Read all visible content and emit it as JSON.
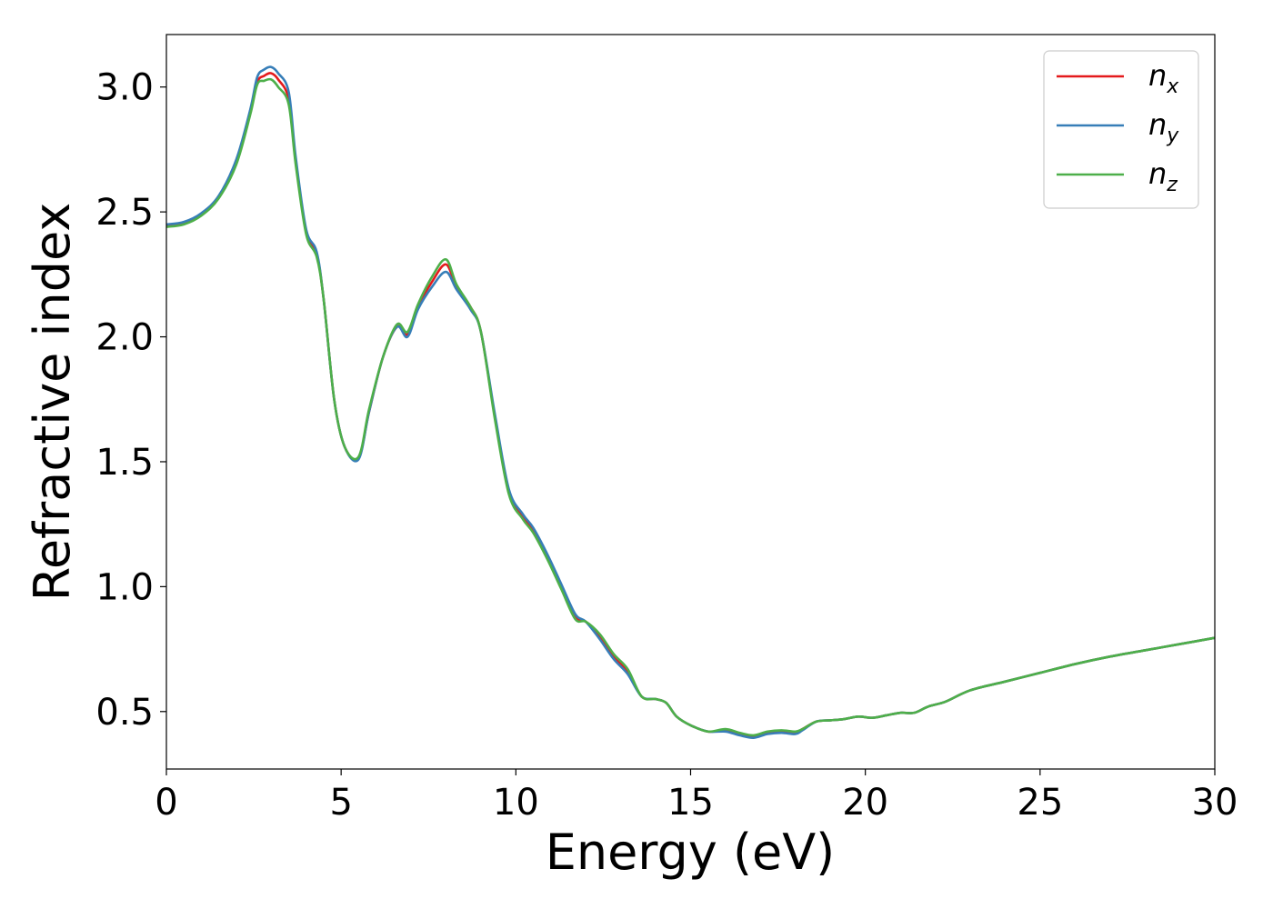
{
  "chart_data": {
    "type": "line",
    "xlabel": "Energy (eV)",
    "ylabel": "Refractive index",
    "xlim": [
      0,
      30
    ],
    "ylim": [
      0.27,
      3.21
    ],
    "xticks": [
      0,
      5,
      10,
      15,
      20,
      25,
      30
    ],
    "xtick_labels": [
      "0",
      "5",
      "10",
      "15",
      "20",
      "25",
      "30"
    ],
    "yticks": [
      0.5,
      1.0,
      1.5,
      2.0,
      2.5,
      3.0
    ],
    "ytick_labels": [
      "0.5",
      "1.0",
      "1.5",
      "2.0",
      "2.5",
      "3.0"
    ],
    "grid": false,
    "legend_position": "top-right",
    "x": [
      0,
      0.5,
      1.0,
      1.5,
      2.0,
      2.4,
      2.6,
      2.8,
      3.0,
      3.2,
      3.5,
      3.7,
      4.0,
      4.3,
      4.5,
      4.8,
      5.1,
      5.5,
      5.8,
      6.2,
      6.6,
      6.9,
      7.2,
      7.6,
      8.0,
      8.3,
      8.7,
      9.0,
      9.4,
      9.8,
      10.2,
      10.5,
      10.9,
      11.3,
      11.7,
      12.0,
      12.4,
      12.8,
      13.2,
      13.6,
      14.0,
      14.3,
      14.6,
      15.0,
      15.5,
      16.0,
      16.4,
      16.8,
      17.2,
      17.6,
      18.0,
      18.2,
      18.6,
      19.0,
      19.4,
      19.8,
      20.2,
      20.6,
      21.0,
      21.4,
      21.8,
      22.3,
      23.0,
      24.0,
      25.0,
      26.0,
      27.0,
      28.0,
      29.0,
      30.0
    ],
    "series": [
      {
        "name": "n_x",
        "label_base": "n",
        "label_sub": "x",
        "color": "#e41a1c",
        "values": [
          2.445,
          2.455,
          2.49,
          2.56,
          2.7,
          2.9,
          3.02,
          3.045,
          3.055,
          3.03,
          2.95,
          2.7,
          2.42,
          2.33,
          2.15,
          1.75,
          1.56,
          1.515,
          1.7,
          1.92,
          2.04,
          2.01,
          2.12,
          2.22,
          2.29,
          2.2,
          2.12,
          2.02,
          1.68,
          1.38,
          1.28,
          1.225,
          1.12,
          1.0,
          0.88,
          0.86,
          0.8,
          0.72,
          0.66,
          0.56,
          0.55,
          0.535,
          0.48,
          0.445,
          0.42,
          0.425,
          0.41,
          0.4,
          0.415,
          0.42,
          0.415,
          0.43,
          0.46,
          0.465,
          0.47,
          0.48,
          0.475,
          0.485,
          0.495,
          0.495,
          0.52,
          0.54,
          0.585,
          0.62,
          0.655,
          0.69,
          0.72,
          0.745,
          0.77,
          0.795
        ]
      },
      {
        "name": "n_y",
        "label_base": "n",
        "label_sub": "y",
        "color": "#377eb8",
        "values": [
          2.45,
          2.46,
          2.495,
          2.565,
          2.71,
          2.91,
          3.04,
          3.07,
          3.08,
          3.055,
          2.98,
          2.72,
          2.43,
          2.34,
          2.15,
          1.75,
          1.56,
          1.51,
          1.7,
          1.92,
          2.04,
          2.0,
          2.11,
          2.2,
          2.26,
          2.19,
          2.11,
          2.02,
          1.69,
          1.39,
          1.29,
          1.235,
          1.13,
          1.01,
          0.89,
          0.86,
          0.79,
          0.71,
          0.65,
          0.56,
          0.55,
          0.535,
          0.48,
          0.445,
          0.42,
          0.42,
          0.405,
          0.395,
          0.41,
          0.415,
          0.41,
          0.425,
          0.46,
          0.465,
          0.47,
          0.48,
          0.475,
          0.485,
          0.495,
          0.495,
          0.52,
          0.54,
          0.585,
          0.62,
          0.655,
          0.69,
          0.72,
          0.745,
          0.77,
          0.795
        ]
      },
      {
        "name": "n_z",
        "label_base": "n",
        "label_sub": "z",
        "color": "#4daf4a",
        "values": [
          2.44,
          2.45,
          2.485,
          2.555,
          2.69,
          2.89,
          3.01,
          3.025,
          3.03,
          3.0,
          2.93,
          2.69,
          2.41,
          2.32,
          2.15,
          1.75,
          1.56,
          1.52,
          1.71,
          1.92,
          2.05,
          2.02,
          2.13,
          2.24,
          2.31,
          2.21,
          2.12,
          2.02,
          1.67,
          1.37,
          1.27,
          1.215,
          1.11,
          0.99,
          0.87,
          0.86,
          0.81,
          0.73,
          0.67,
          0.56,
          0.55,
          0.535,
          0.48,
          0.445,
          0.42,
          0.43,
          0.415,
          0.405,
          0.42,
          0.425,
          0.42,
          0.43,
          0.46,
          0.465,
          0.47,
          0.48,
          0.475,
          0.485,
          0.495,
          0.495,
          0.52,
          0.54,
          0.585,
          0.62,
          0.655,
          0.69,
          0.72,
          0.745,
          0.77,
          0.795
        ]
      }
    ]
  }
}
